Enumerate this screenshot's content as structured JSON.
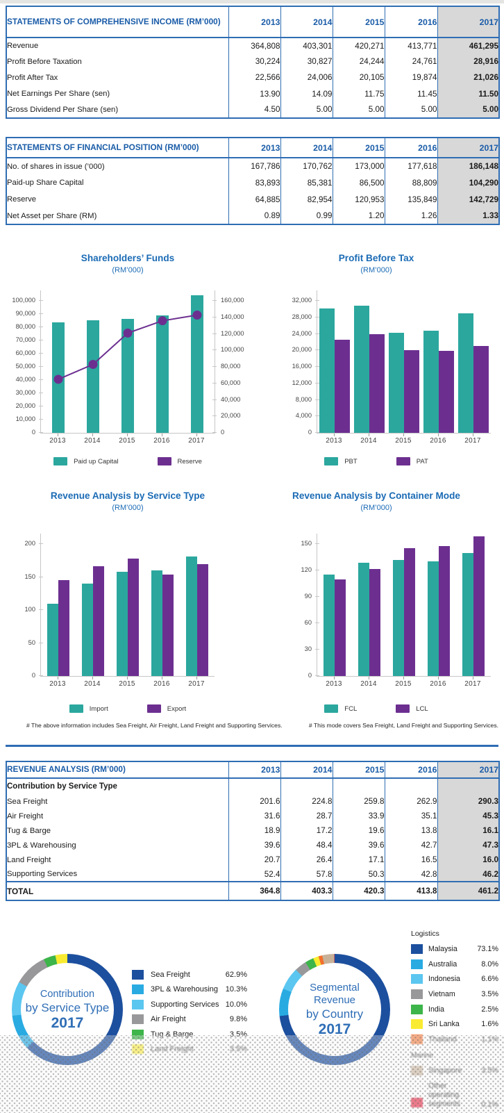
{
  "colors": {
    "table_blue": "#2E6DB3",
    "heading_blue": "#1A5CA8",
    "chart_title_blue": "#1B6BB5",
    "teal": "#2BA79E",
    "purple": "#6C2F90",
    "highlight_col_gray": "#D8D8D8",
    "axis_gray": "#C6C6C6"
  },
  "tables": [
    {
      "title": "STATEMENTS OF COMPREHENSIVE INCOME (RM’000)",
      "years": [
        "2013",
        "2014",
        "2015",
        "2016",
        "2017"
      ],
      "rows": [
        {
          "label": "Revenue",
          "values": [
            "364,808",
            "403,301",
            "420,271",
            "413,771",
            "461,295"
          ]
        },
        {
          "label": "Profit Before Taxation",
          "values": [
            "30,224",
            "30,827",
            "24,244",
            "24,761",
            "28,916"
          ]
        },
        {
          "label": "Profit After Tax",
          "values": [
            "22,566",
            "24,006",
            "20,105",
            "19,874",
            "21,026"
          ]
        },
        {
          "label": "Net Earnings Per Share (sen)",
          "values": [
            "13.90",
            "14.09",
            "11.75",
            "11.45",
            "11.50"
          ]
        },
        {
          "label": "Gross Dividend Per Share (sen)",
          "values": [
            "4.50",
            "5.00",
            "5.00",
            "5.00",
            "5.00"
          ]
        }
      ]
    },
    {
      "title": "STATEMENTS OF FINANCIAL POSITION (RM’000)",
      "years": [
        "2013",
        "2014",
        "2015",
        "2016",
        "2017"
      ],
      "rows": [
        {
          "label": "No. of shares in issue (’000)",
          "values": [
            "167,786",
            "170,762",
            "173,000",
            "177,618",
            "186,148"
          ]
        },
        {
          "label": "Paid-up Share Capital",
          "values": [
            "83,893",
            "85,381",
            "86,500",
            "88,809",
            "104,290"
          ]
        },
        {
          "label": "Reserve",
          "values": [
            "64,885",
            "82,954",
            "120,953",
            "135,849",
            "142,729"
          ]
        },
        {
          "label": "Net Asset per Share (RM)",
          "values": [
            "0.89",
            "0.99",
            "1.20",
            "1.26",
            "1.33"
          ]
        }
      ]
    }
  ],
  "revenue_table": {
    "title": "REVENUE ANALYSIS (RM’000)",
    "years": [
      "2013",
      "2014",
      "2015",
      "2016",
      "2017"
    ],
    "subheader": "Contribution by Service Type",
    "rows": [
      {
        "label": "Sea Freight",
        "values": [
          "201.6",
          "224.8",
          "259.8",
          "262.9",
          "290.3"
        ]
      },
      {
        "label": "Air Freight",
        "values": [
          "31.6",
          "28.7",
          "33.9",
          "35.1",
          "45.3"
        ]
      },
      {
        "label": "Tug & Barge",
        "values": [
          "18.9",
          "17.2",
          "19.6",
          "13.8",
          "16.1"
        ]
      },
      {
        "label": "3PL & Warehousing",
        "values": [
          "39.6",
          "48.4",
          "39.6",
          "42.7",
          "47.3"
        ]
      },
      {
        "label": "Land Freight",
        "values": [
          "20.7",
          "26.4",
          "17.1",
          "16.5",
          "16.0"
        ]
      },
      {
        "label": "Supporting Services",
        "values": [
          "52.4",
          "57.8",
          "50.3",
          "42.8",
          "46.2"
        ]
      }
    ],
    "total": {
      "label": "TOTAL",
      "values": [
        "364.8",
        "403.3",
        "420.3",
        "413.8",
        "461.2"
      ]
    }
  },
  "chart_data": [
    {
      "type": "bar",
      "variant": "bar+line-dual-axis",
      "title": "Shareholders’ Funds",
      "subtitle": "(RM’000)",
      "categories": [
        "2013",
        "2014",
        "2015",
        "2016",
        "2017"
      ],
      "series": [
        {
          "name": "Paid up Capital",
          "kind": "bar",
          "axis": "left",
          "color": "#2BA79E",
          "values": [
            83893,
            85381,
            86500,
            88809,
            104290
          ]
        },
        {
          "name": "Reserve",
          "kind": "line",
          "axis": "right",
          "color": "#6C2F90",
          "values": [
            64885,
            82954,
            120953,
            135849,
            142729
          ]
        }
      ],
      "left_axis": {
        "min": 0,
        "max": 100000,
        "step": 10000
      },
      "right_axis": {
        "min": 0,
        "max": 160000,
        "step": 20000
      },
      "legend_position": "bottom",
      "grid": false
    },
    {
      "type": "bar",
      "variant": "grouped",
      "title": "Profit Before Tax",
      "subtitle": "(RM’000)",
      "categories": [
        "2013",
        "2014",
        "2015",
        "2016",
        "2017"
      ],
      "series": [
        {
          "name": "PBT",
          "kind": "bar",
          "color": "#2BA79E",
          "values": [
            30224,
            30827,
            24244,
            24761,
            28916
          ]
        },
        {
          "name": "PAT",
          "kind": "bar",
          "color": "#6C2F90",
          "values": [
            22566,
            24006,
            20105,
            19874,
            21026
          ]
        }
      ],
      "left_axis": {
        "min": 0,
        "max": 32000,
        "step": 4000
      },
      "legend_position": "bottom",
      "grid": false
    },
    {
      "type": "bar",
      "variant": "grouped",
      "title": "Revenue Analysis by Service Type",
      "subtitle": "(RM’000)",
      "categories": [
        "2013",
        "2014",
        "2015",
        "2016",
        "2017"
      ],
      "series": [
        {
          "name": "Import",
          "kind": "bar",
          "color": "#2BA79E",
          "values": [
            110,
            140,
            158,
            160,
            181
          ]
        },
        {
          "name": "Export",
          "kind": "bar",
          "color": "#6C2F90",
          "values": [
            145,
            166,
            178,
            154,
            170
          ]
        }
      ],
      "left_axis": {
        "min": 0,
        "max": 200,
        "step": 50
      },
      "legend_position": "bottom",
      "grid": false,
      "footnote": "# The above information includes Sea Freight, Air Freight, Land Freight and Supporting Services."
    },
    {
      "type": "bar",
      "variant": "grouped",
      "title": "Revenue Analysis by Container Mode",
      "subtitle": "(RM’000)",
      "categories": [
        "2013",
        "2014",
        "2015",
        "2016",
        "2017"
      ],
      "series": [
        {
          "name": "FCL",
          "kind": "bar",
          "color": "#2BA79E",
          "values": [
            115,
            129,
            132,
            130,
            140
          ]
        },
        {
          "name": "LCL",
          "kind": "bar",
          "color": "#6C2F90",
          "values": [
            110,
            122,
            145,
            148,
            159
          ]
        }
      ],
      "left_axis": {
        "min": 0,
        "max": 150,
        "step": 30
      },
      "legend_position": "bottom",
      "grid": false,
      "footnote": "#  This mode covers Sea Freight, Land Freight and Supporting Services."
    },
    {
      "type": "pie",
      "variant": "donut",
      "center": [
        "Contribution",
        "by Service Type",
        "2017"
      ],
      "slices": [
        {
          "label": "Sea Freight",
          "pct": 62.9,
          "value": "62.9%",
          "color": "#1C4F9E",
          "faded": false
        },
        {
          "label": "3PL & Warehousing",
          "pct": 10.3,
          "value": "10.3%",
          "color": "#29ABE2",
          "faded": false
        },
        {
          "label": "Supporting Services",
          "pct": 10.0,
          "value": "10.0%",
          "color": "#5BC6F0",
          "faded": false
        },
        {
          "label": "Air Freight",
          "pct": 9.8,
          "value": "9.8%",
          "color": "#98989A",
          "faded": false
        },
        {
          "label": "Tug & Barge",
          "pct": 3.5,
          "value": "3.5%",
          "color": "#3DB54A",
          "faded": false
        },
        {
          "label": "Land Freight",
          "pct": 3.5,
          "value": "3.5%",
          "color": "#F9EB31",
          "faded": true
        }
      ]
    },
    {
      "type": "pie",
      "variant": "donut",
      "center": [
        "Segmental Revenue",
        "by Country",
        "2017"
      ],
      "slices": [
        {
          "label": "Malaysia",
          "pct": 73.1,
          "value": "73.1%",
          "color": "#1C4F9E",
          "section": "Logistics",
          "faded": false
        },
        {
          "label": "Australia",
          "pct": 8.0,
          "value": "8.0%",
          "color": "#29ABE2",
          "section": "Logistics",
          "faded": false
        },
        {
          "label": "Indonesia",
          "pct": 6.6,
          "value": "6.6%",
          "color": "#5BC6F0",
          "section": "Logistics",
          "faded": false
        },
        {
          "label": "Vietnam",
          "pct": 3.5,
          "value": "3.5%",
          "color": "#98989A",
          "section": "Logistics",
          "faded": false
        },
        {
          "label": "India",
          "pct": 2.5,
          "value": "2.5%",
          "color": "#3DB54A",
          "section": "Logistics",
          "faded": false
        },
        {
          "label": "Sri Lanka",
          "pct": 1.6,
          "value": "1.6%",
          "color": "#F9EB31",
          "section": "Logistics",
          "faded": false
        },
        {
          "label": "Thailand",
          "pct": 1.1,
          "value": "1.1%",
          "color": "#F2702D",
          "section": "Logistics",
          "faded": true
        },
        {
          "label": "Singapore",
          "pct": 3.5,
          "value": "3.5%",
          "color": "#C7B299",
          "section": "Marine",
          "faded": true
        },
        {
          "label": "Other operating segments",
          "pct": 0.1,
          "value": "0.1%",
          "color": "#E51937",
          "section": "",
          "faded": true,
          "wrap": true
        }
      ]
    }
  ]
}
